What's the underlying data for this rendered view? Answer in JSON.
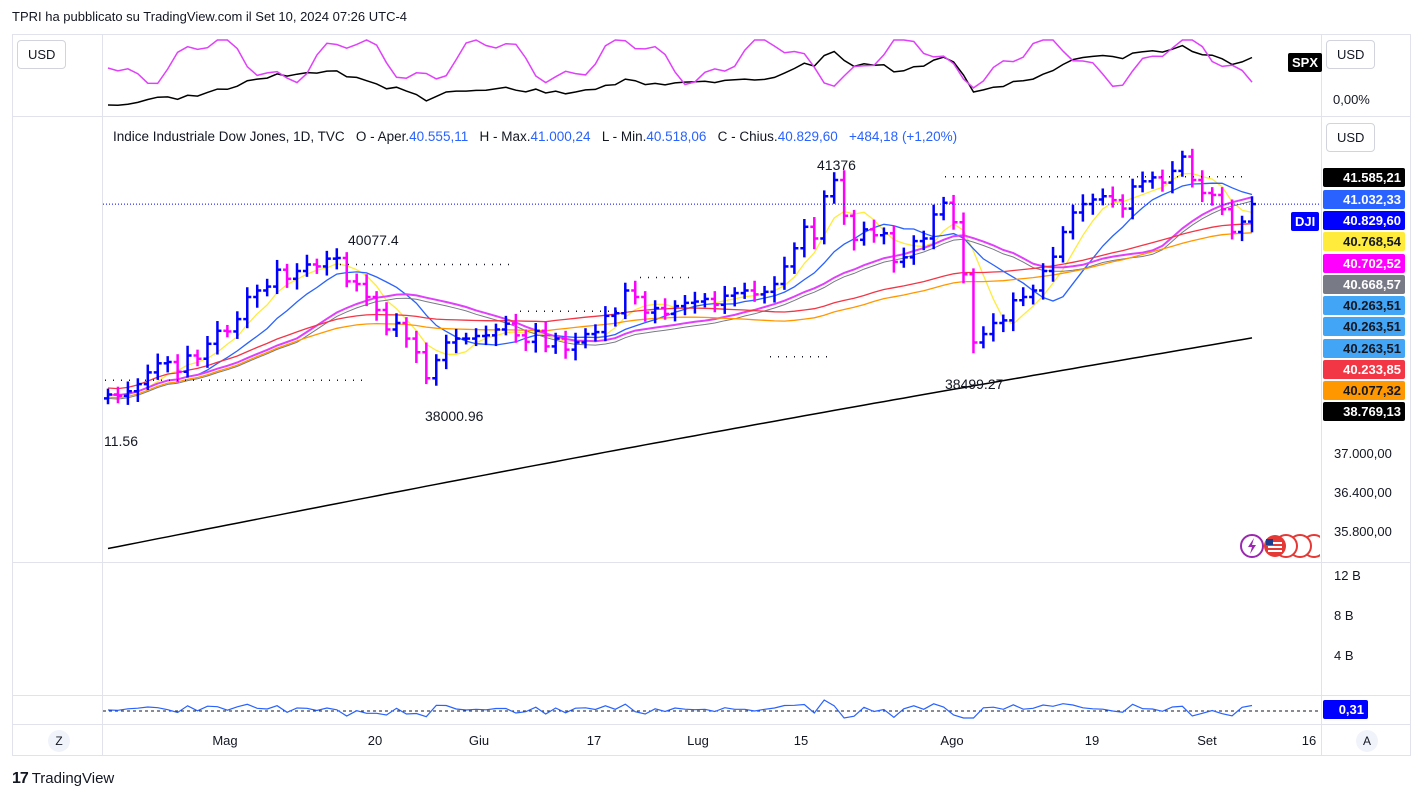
{
  "header": {
    "text": "TPRI ha pubblicato su TradingView.com il Set 10, 2024 07:26 UTC-4"
  },
  "top_pane": {
    "currency_left": "USD",
    "currency_right": "USD",
    "symbol": "SPX",
    "percent_label": "0,00%"
  },
  "main_pane": {
    "currency": "USD",
    "symbol_tag": "DJI"
  },
  "legend": {
    "name": "Indice Industriale Dow Jones, 1D, TVC",
    "o_label": "O - Aper.",
    "o_value": "40.555,11",
    "h_label": "H - Max.",
    "h_value": "41.000,24",
    "l_label": "L - Min.",
    "l_value": "40.518,06",
    "c_label": "C - Chius.",
    "c_value": "40.829,60",
    "change": "+484,18 (+1,20%)"
  },
  "annotations": {
    "a1": "41376",
    "a2": "40077.4",
    "a3": "38000.96",
    "a4": "38499.27",
    "a5": "11.56"
  },
  "price_tags": [
    {
      "text": "41.585,21",
      "bg": "#000000",
      "fg": "#ffffff"
    },
    {
      "text": "41.032,33",
      "bg": "#2962ff",
      "fg": "#ffffff"
    },
    {
      "text": "40.829,60",
      "bg": "#0000ff",
      "fg": "#ffffff"
    },
    {
      "text": "40.768,54",
      "bg": "#ffeb3b",
      "fg": "#131722"
    },
    {
      "text": "40.702,52",
      "bg": "#ff00ff",
      "fg": "#ffffff"
    },
    {
      "text": "40.668,57",
      "bg": "#787b86",
      "fg": "#ffffff"
    },
    {
      "text": "40.263,51",
      "bg": "#42a5f5",
      "fg": "#131722"
    },
    {
      "text": "40.263,51",
      "bg": "#42a5f5",
      "fg": "#131722"
    },
    {
      "text": "40.263,51",
      "bg": "#42a5f5",
      "fg": "#131722"
    },
    {
      "text": "40.233,85",
      "bg": "#f23645",
      "fg": "#ffffff"
    },
    {
      "text": "40.077,32",
      "bg": "#ff9800",
      "fg": "#131722"
    },
    {
      "text": "38.769,13",
      "bg": "#000000",
      "fg": "#ffffff"
    }
  ],
  "price_axis": [
    "37.000,00",
    "36.400,00",
    "35.800,00"
  ],
  "volume_axis": [
    "12 B",
    "8 B",
    "4 B"
  ],
  "indicator_value": "0,31",
  "time_axis": [
    "Mag",
    "20",
    "Giu",
    "17",
    "Lug",
    "15",
    "Ago",
    "19",
    "Set",
    "16"
  ],
  "buttons": {
    "z": "Z",
    "a": "A"
  },
  "brand": "TradingView",
  "colors": {
    "up": "#0000ff",
    "down": "#ff00ff",
    "ma_black": "#000000",
    "ma_blue": "#2962ff",
    "ma_yellow": "#ffeb3b",
    "ma_red": "#f23645",
    "ma_orange": "#ff9800",
    "ma_magenta": "#e040fb"
  },
  "chart_data": {
    "type": "ohlc",
    "symbol": "DJI",
    "interval": "1D",
    "last_ohlc": {
      "open": 40555.11,
      "high": 41000.24,
      "low": 40518.06,
      "close": 40829.6
    },
    "price_axis_ticks": [
      37000,
      36400,
      35800
    ],
    "annotated_levels": [
      41376,
      40077.4,
      38000.96,
      38499.27
    ],
    "moving_averages_last": [
      41585.21,
      41032.33,
      40768.54,
      40702.52,
      40668.57,
      40263.51,
      40233.85,
      40077.32,
      38769.13
    ],
    "closes_approx": [
      37900,
      37880,
      37950,
      38060,
      38240,
      38380,
      38400,
      38250,
      38500,
      38450,
      38680,
      38880,
      38870,
      39060,
      39400,
      39500,
      39560,
      39820,
      39680,
      39800,
      39900,
      39870,
      39990,
      40000,
      39640,
      39600,
      39400,
      39200,
      38900,
      39000,
      38760,
      38550,
      38150,
      38430,
      38700,
      38760,
      38760,
      38800,
      38810,
      38900,
      38990,
      38810,
      38710,
      38880,
      38640,
      38760,
      38590,
      38700,
      38830,
      38860,
      39110,
      39150,
      39500,
      39400,
      39160,
      39230,
      39140,
      39260,
      39310,
      39330,
      39370,
      39280,
      39420,
      39460,
      39500,
      39440,
      39480,
      39600,
      39870,
      40150,
      40480,
      40300,
      40950,
      41200,
      40650,
      40280,
      40440,
      40350,
      40380,
      39940,
      40010,
      40260,
      40300,
      40670,
      40850,
      40550,
      39750,
      38700,
      38830,
      39000,
      39040,
      39350,
      39400,
      39500,
      39800,
      40020,
      40400,
      40700,
      40830,
      40900,
      40950,
      40890,
      40760,
      41100,
      41180,
      41240,
      41160,
      41340,
      41560,
      41200,
      41000,
      40970,
      40750,
      40400,
      40560,
      40830
    ]
  }
}
